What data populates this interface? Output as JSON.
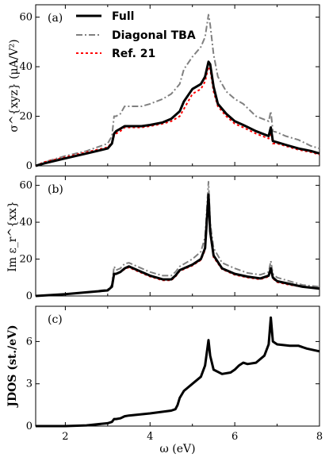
{
  "chart_data": [
    {
      "type": "line",
      "panel_label": "(a)",
      "ylabel": "σ^{xyz} (μA/V²)",
      "ylim": [
        0,
        65
      ],
      "yticks": [
        0,
        20,
        40,
        60
      ],
      "xlim": [
        1.3,
        8.0
      ],
      "legend": "top-left",
      "series": [
        {
          "name": "Full",
          "color": "#000000",
          "style": "solid",
          "x": [
            1.3,
            1.5,
            2.0,
            2.5,
            3.0,
            3.1,
            3.15,
            3.2,
            3.3,
            3.4,
            3.5,
            3.8,
            4.0,
            4.3,
            4.5,
            4.7,
            4.8,
            5.0,
            5.2,
            5.3,
            5.38,
            5.42,
            5.5,
            5.6,
            5.8,
            6.0,
            6.2,
            6.5,
            6.8,
            6.85,
            6.9,
            7.0,
            7.2,
            7.5,
            7.8,
            8.0
          ],
          "y": [
            0,
            1,
            3,
            5,
            7,
            9,
            13,
            14,
            15,
            16,
            16,
            16,
            16.5,
            17.5,
            19,
            22,
            26,
            31,
            33,
            36,
            42,
            41,
            32,
            25,
            21,
            18,
            16.5,
            14,
            12,
            15.5,
            10,
            9.5,
            8.5,
            7,
            6,
            5
          ]
        },
        {
          "name": "Diagonal TBA",
          "color": "#808080",
          "style": "dashdot",
          "x": [
            1.3,
            1.5,
            2.0,
            2.5,
            3.0,
            3.1,
            3.15,
            3.2,
            3.3,
            3.4,
            3.5,
            3.8,
            4.0,
            4.3,
            4.5,
            4.7,
            4.8,
            5.0,
            5.2,
            5.3,
            5.38,
            5.42,
            5.5,
            5.6,
            5.8,
            6.0,
            6.2,
            6.5,
            6.8,
            6.85,
            6.9,
            7.0,
            7.2,
            7.5,
            7.8,
            8.0
          ],
          "y": [
            0,
            1.5,
            4,
            6,
            9,
            12,
            20,
            20,
            21,
            24,
            24,
            24,
            25,
            27,
            29,
            33,
            39,
            44,
            48,
            52,
            61,
            57,
            45,
            36,
            30,
            27,
            25,
            20,
            18,
            22,
            14,
            13.5,
            12,
            10.5,
            8,
            7
          ]
        },
        {
          "name": "Ref. 21",
          "color": "#ff0000",
          "style": "dotted",
          "x": [
            1.3,
            1.5,
            2.0,
            2.5,
            3.0,
            3.1,
            3.15,
            3.2,
            3.3,
            3.4,
            3.5,
            3.8,
            4.0,
            4.3,
            4.5,
            4.7,
            4.8,
            5.0,
            5.2,
            5.3,
            5.38,
            5.42,
            5.5,
            5.6,
            5.8,
            6.0,
            6.2,
            6.5,
            6.8,
            6.85,
            6.9,
            7.0,
            7.2,
            7.5,
            7.8,
            8.0
          ],
          "y": [
            0,
            1.5,
            3.5,
            5.5,
            7.5,
            9.5,
            12,
            13,
            14,
            15.5,
            15.5,
            15.5,
            16,
            17,
            18,
            20,
            23,
            29,
            31,
            34,
            40,
            39,
            30,
            24,
            20,
            17,
            15.5,
            13,
            11,
            13.5,
            9,
            9,
            8,
            6.5,
            5.5,
            4.5
          ]
        }
      ]
    },
    {
      "type": "line",
      "panel_label": "(b)",
      "ylabel": "Im ε_r^{xx}",
      "ylim": [
        0,
        65
      ],
      "yticks": [
        0,
        20,
        40,
        60
      ],
      "xlim": [
        1.3,
        8.0
      ],
      "series": [
        {
          "name": "Full",
          "color": "#000000",
          "style": "solid",
          "x": [
            1.3,
            2.0,
            2.5,
            3.0,
            3.1,
            3.15,
            3.2,
            3.3,
            3.4,
            3.5,
            3.8,
            4.0,
            4.3,
            4.5,
            4.6,
            4.7,
            5.0,
            5.2,
            5.3,
            5.38,
            5.42,
            5.5,
            5.7,
            6.0,
            6.3,
            6.6,
            6.8,
            6.85,
            6.9,
            7.0,
            7.3,
            7.6,
            8.0
          ],
          "y": [
            0,
            1,
            2,
            3,
            5,
            12,
            12,
            13,
            15,
            16,
            13,
            11,
            9,
            9,
            11,
            14,
            17,
            20,
            26,
            55,
            35,
            22,
            15,
            12,
            10.5,
            9.5,
            11,
            15,
            10,
            8,
            6.5,
            5,
            4
          ]
        },
        {
          "name": "Diagonal TBA",
          "color": "#808080",
          "style": "dashdot",
          "x": [
            1.3,
            2.0,
            2.5,
            3.0,
            3.1,
            3.15,
            3.2,
            3.3,
            3.4,
            3.5,
            3.8,
            4.0,
            4.3,
            4.5,
            4.6,
            4.7,
            5.0,
            5.2,
            5.3,
            5.38,
            5.42,
            5.5,
            5.7,
            6.0,
            6.3,
            6.6,
            6.8,
            6.85,
            6.9,
            7.0,
            7.3,
            7.6,
            8.0
          ],
          "y": [
            0,
            1,
            2,
            3.5,
            6,
            16,
            14,
            15,
            17.5,
            18,
            15,
            13,
            11,
            11,
            13,
            16,
            20,
            24,
            32,
            62,
            40,
            26,
            18,
            15,
            12.5,
            11.5,
            13,
            19,
            12,
            10,
            8,
            6,
            5
          ]
        },
        {
          "name": "Ref. 21",
          "color": "#ff0000",
          "style": "dotted",
          "x": [
            1.3,
            2.0,
            2.5,
            3.0,
            3.1,
            3.15,
            3.2,
            3.3,
            3.4,
            3.5,
            3.8,
            4.0,
            4.3,
            4.5,
            4.6,
            4.7,
            5.0,
            5.2,
            5.3,
            5.38,
            5.42,
            5.5,
            5.7,
            6.0,
            6.3,
            6.6,
            6.8,
            6.85,
            6.9,
            7.0,
            7.3,
            7.6,
            8.0
          ],
          "y": [
            0,
            1,
            2,
            3,
            5,
            11.5,
            12,
            13,
            14.5,
            15.5,
            12.5,
            10.5,
            8.5,
            8.5,
            10.5,
            13.5,
            16.5,
            19.5,
            25,
            52,
            34,
            21,
            14.5,
            11.5,
            10,
            9,
            10.5,
            14,
            9.5,
            7.5,
            6,
            5,
            4
          ]
        }
      ]
    },
    {
      "type": "line",
      "panel_label": "(c)",
      "ylabel": "JDOS (st./eV)",
      "xlabel": "ω (eV)",
      "ylim": [
        0,
        8.5
      ],
      "yticks": [
        0,
        3,
        6
      ],
      "xlim": [
        1.3,
        8.0
      ],
      "xticks": [
        2,
        4,
        6,
        8
      ],
      "series": [
        {
          "name": "Full",
          "color": "#000000",
          "style": "solid",
          "x": [
            1.3,
            2.0,
            2.5,
            3.0,
            3.1,
            3.15,
            3.2,
            3.3,
            3.4,
            3.5,
            4.0,
            4.5,
            4.6,
            4.65,
            4.7,
            4.8,
            5.0,
            5.2,
            5.3,
            5.38,
            5.42,
            5.5,
            5.7,
            5.9,
            6.0,
            6.1,
            6.2,
            6.3,
            6.5,
            6.7,
            6.8,
            6.85,
            6.9,
            7.0,
            7.3,
            7.5,
            7.7,
            8.0
          ],
          "y": [
            0,
            0,
            0.05,
            0.2,
            0.3,
            0.5,
            0.5,
            0.55,
            0.7,
            0.75,
            0.9,
            1.1,
            1.2,
            1.5,
            2.0,
            2.5,
            3.0,
            3.5,
            4.3,
            6.1,
            5.0,
            4.0,
            3.7,
            3.8,
            4.0,
            4.3,
            4.5,
            4.4,
            4.5,
            5.0,
            5.8,
            7.7,
            6.0,
            5.8,
            5.7,
            5.7,
            5.5,
            5.3
          ]
        }
      ]
    }
  ]
}
